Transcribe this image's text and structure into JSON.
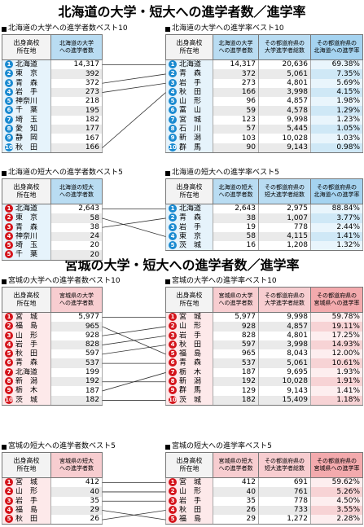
{
  "hokkaido": {
    "title": "北海道の大学・短大への進学者数／進学率",
    "univ_count": {
      "subtitle": "北海道の大学への進学者数ベスト10",
      "col1": "出身高校\n所在地",
      "col2": "北海道の大学\nへの進学者数",
      "rows": [
        {
          "rank": "1",
          "pref": "北海道",
          "val": "14,317"
        },
        {
          "rank": "2",
          "pref": "東　京",
          "val": "392"
        },
        {
          "rank": "3",
          "pref": "青　森",
          "val": "372"
        },
        {
          "rank": "4",
          "pref": "岩　手",
          "val": "273"
        },
        {
          "rank": "5",
          "pref": "神奈川",
          "val": "218"
        },
        {
          "rank": "6",
          "pref": "千　葉",
          "val": "195"
        },
        {
          "rank": "7",
          "pref": "埼　玉",
          "val": "182"
        },
        {
          "rank": "8",
          "pref": "愛　知",
          "val": "177"
        },
        {
          "rank": "9",
          "pref": "静　岡",
          "val": "167"
        },
        {
          "rank": "10",
          "pref": "秋　田",
          "val": "166"
        }
      ]
    },
    "univ_rate": {
      "subtitle": "北海道の大学への進学率ベスト10",
      "col1": "出身高校\n所在地",
      "col2": "北海道の大学\nへの進学者数",
      "col3": "その都道府県の\n大学進学者総数",
      "col4": "その都道府県の\n北海道への進学率",
      "rows": [
        {
          "rank": "1",
          "pref": "北海道",
          "a": "14,317",
          "b": "20,636",
          "r": "69.38%"
        },
        {
          "rank": "2",
          "pref": "青　森",
          "a": "372",
          "b": "5,061",
          "r": "7.35%"
        },
        {
          "rank": "3",
          "pref": "岩　手",
          "a": "273",
          "b": "4,801",
          "r": "5.69%"
        },
        {
          "rank": "4",
          "pref": "秋　田",
          "a": "166",
          "b": "3,998",
          "r": "4.15%"
        },
        {
          "rank": "5",
          "pref": "山　形",
          "a": "96",
          "b": "4,857",
          "r": "1.98%"
        },
        {
          "rank": "6",
          "pref": "富　山",
          "a": "59",
          "b": "4,578",
          "r": "1.29%"
        },
        {
          "rank": "7",
          "pref": "宮　城",
          "a": "123",
          "b": "9,998",
          "r": "1.23%"
        },
        {
          "rank": "8",
          "pref": "石　川",
          "a": "57",
          "b": "5,445",
          "r": "1.05%"
        },
        {
          "rank": "9",
          "pref": "新　潟",
          "a": "103",
          "b": "10,028",
          "r": "1.03%"
        },
        {
          "rank": "10",
          "pref": "群　馬",
          "a": "90",
          "b": "9,143",
          "r": "0.98%"
        }
      ]
    },
    "jc_count": {
      "subtitle": "北海道の短大への進学者数ベスト5",
      "col1": "出身高校\n所在地",
      "col2": "北海道の短大\nへの進学者数",
      "rows": [
        {
          "rank": "1",
          "pref": "北海道",
          "val": "2,643"
        },
        {
          "rank": "2",
          "pref": "東　京",
          "val": "58"
        },
        {
          "rank": "3",
          "pref": "青　森",
          "val": "38"
        },
        {
          "rank": "4",
          "pref": "神奈川",
          "val": "24"
        },
        {
          "rank": "5",
          "pref": "埼　玉",
          "val": "20"
        },
        {
          "rank": "5",
          "pref": "千　葉",
          "val": "20"
        }
      ]
    },
    "jc_rate": {
      "subtitle": "北海道の短大への進学率ベスト5",
      "col1": "出身高校\n所在地",
      "col2": "北海道の短大\nへの進学者数",
      "col3": "その都道府県の\n短大進学者総数",
      "col4": "その都道府県の\n北海道への進学率",
      "rows": [
        {
          "rank": "1",
          "pref": "北海道",
          "a": "2,643",
          "b": "2,975",
          "r": "88.84%"
        },
        {
          "rank": "2",
          "pref": "青　森",
          "a": "38",
          "b": "1,007",
          "r": "3.77%"
        },
        {
          "rank": "3",
          "pref": "岩　手",
          "a": "19",
          "b": "778",
          "r": "2.44%"
        },
        {
          "rank": "4",
          "pref": "東　京",
          "a": "58",
          "b": "4,115",
          "r": "1.41%"
        },
        {
          "rank": "5",
          "pref": "茨　城",
          "a": "16",
          "b": "1,208",
          "r": "1.32%"
        }
      ]
    }
  },
  "miyagi": {
    "title": "宮城の大学・短大への進学者数／進学率",
    "univ_count": {
      "subtitle": "宮城の大学への進学者数ベスト10",
      "col1": "出身高校\n所在地",
      "col2": "宮城県の大学\nへの進学者数",
      "rows": [
        {
          "rank": "1",
          "pref": "宮　城",
          "val": "5,977"
        },
        {
          "rank": "2",
          "pref": "福　島",
          "val": "965"
        },
        {
          "rank": "3",
          "pref": "山　形",
          "val": "928"
        },
        {
          "rank": "4",
          "pref": "岩　手",
          "val": "828"
        },
        {
          "rank": "5",
          "pref": "秋　田",
          "val": "597"
        },
        {
          "rank": "6",
          "pref": "青　森",
          "val": "537"
        },
        {
          "rank": "7",
          "pref": "北海道",
          "val": "199"
        },
        {
          "rank": "8",
          "pref": "新　潟",
          "val": "192"
        },
        {
          "rank": "9",
          "pref": "栃　木",
          "val": "187"
        },
        {
          "rank": "10",
          "pref": "茨　城",
          "val": "182"
        }
      ]
    },
    "univ_rate": {
      "subtitle": "宮城の大学への進学率ベスト10",
      "col1": "出身高校\n所在地",
      "col2": "宮城県の大学\nへの進学者数",
      "col3": "その都道府県の\n大学進学者総数",
      "col4": "その都道府県の\n宮城県への進学率",
      "rows": [
        {
          "rank": "1",
          "pref": "宮　城",
          "a": "5,977",
          "b": "9,998",
          "r": "59.78%"
        },
        {
          "rank": "2",
          "pref": "山　形",
          "a": "928",
          "b": "4,857",
          "r": "19.11%"
        },
        {
          "rank": "3",
          "pref": "岩　手",
          "a": "828",
          "b": "4,801",
          "r": "17.25%"
        },
        {
          "rank": "4",
          "pref": "秋　田",
          "a": "597",
          "b": "3,998",
          "r": "14.93%"
        },
        {
          "rank": "5",
          "pref": "福　島",
          "a": "965",
          "b": "8,043",
          "r": "12.00%"
        },
        {
          "rank": "6",
          "pref": "青　森",
          "a": "537",
          "b": "5,061",
          "r": "10.61%"
        },
        {
          "rank": "7",
          "pref": "栃　木",
          "a": "187",
          "b": "9,695",
          "r": "1.93%"
        },
        {
          "rank": "8",
          "pref": "新　潟",
          "a": "192",
          "b": "10,028",
          "r": "1.91%"
        },
        {
          "rank": "9",
          "pref": "群　馬",
          "a": "129",
          "b": "9,143",
          "r": "1.41%"
        },
        {
          "rank": "10",
          "pref": "茨　城",
          "a": "182",
          "b": "15,409",
          "r": "1.18%"
        }
      ]
    },
    "jc_count": {
      "subtitle": "宮城の短大への進学者数ベスト5",
      "col1": "出身高校\n所在地",
      "col2": "宮城県の短大\nへの進学者数",
      "rows": [
        {
          "rank": "1",
          "pref": "宮　城",
          "val": "412"
        },
        {
          "rank": "2",
          "pref": "山　形",
          "val": "40"
        },
        {
          "rank": "3",
          "pref": "岩　手",
          "val": "35"
        },
        {
          "rank": "4",
          "pref": "福　島",
          "val": "29"
        },
        {
          "rank": "5",
          "pref": "秋　田",
          "val": "26"
        }
      ]
    },
    "jc_rate": {
      "subtitle": "宮城の短大への進学率ベスト5",
      "col1": "出身高校\n所在地",
      "col2": "宮城県の短大\nへの進学者数",
      "col3": "その都道府県の\n短大進学者総数",
      "col4": "その都道府県の\n宮城県への進学率",
      "rows": [
        {
          "rank": "1",
          "pref": "宮　城",
          "a": "412",
          "b": "691",
          "r": "59.62%"
        },
        {
          "rank": "2",
          "pref": "山　形",
          "a": "40",
          "b": "761",
          "r": "5.26%"
        },
        {
          "rank": "3",
          "pref": "岩　手",
          "a": "35",
          "b": "778",
          "r": "4.50%"
        },
        {
          "rank": "4",
          "pref": "秋　田",
          "a": "26",
          "b": "733",
          "r": "3.55%"
        },
        {
          "rank": "5",
          "pref": "福　島",
          "a": "29",
          "b": "1,272",
          "r": "2.28%"
        }
      ]
    }
  },
  "colors": {
    "blue_rank": "#1a8ad0",
    "red_rank": "#d4141b",
    "blue_header": "#a5d3f0",
    "red_header": "#f3aaad"
  }
}
